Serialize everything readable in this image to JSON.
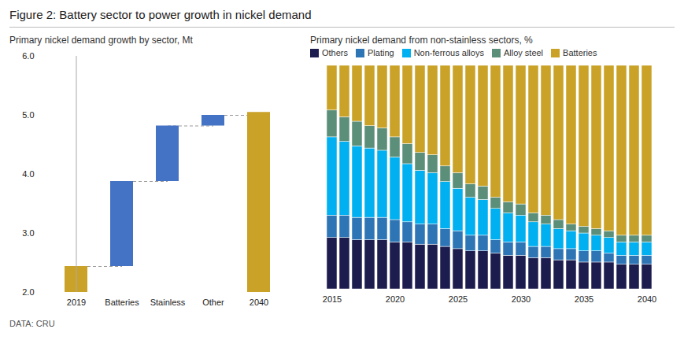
{
  "title": "Figure 2: Battery sector to power growth in nickel demand",
  "caption": "DATA: CRU",
  "chart_data": [
    {
      "type": "waterfall",
      "title": "Primary nickel demand growth by sector, Mt",
      "categories": [
        "2019",
        "Batteries",
        "Stainless",
        "Other",
        "2040"
      ],
      "bottoms": [
        2.0,
        2.44,
        3.88,
        4.82,
        2.0
      ],
      "tops": [
        2.44,
        3.88,
        4.82,
        5.0,
        5.05
      ],
      "colors": [
        "#C9A227",
        "#4472C4",
        "#4472C4",
        "#4472C4",
        "#C9A227"
      ],
      "ylim": [
        2.0,
        6.0
      ],
      "yticks": [
        {
          "value": 2.0,
          "label": "2.0"
        },
        {
          "value": 3.0,
          "label": "3.0"
        },
        {
          "value": 4.0,
          "label": "4.0"
        },
        {
          "value": 5.0,
          "label": "5.0"
        },
        {
          "value": 6.0,
          "label": "6.0"
        }
      ],
      "grid": false
    },
    {
      "type": "bar",
      "stacked": true,
      "title": "Primary nickel demand from non-stainless sectors, %",
      "categories": [
        "2015",
        null,
        null,
        null,
        null,
        "2020",
        null,
        null,
        null,
        null,
        "2025",
        null,
        null,
        null,
        null,
        "2030",
        null,
        null,
        null,
        null,
        "2035",
        null,
        null,
        null,
        null,
        "2040"
      ],
      "series": [
        {
          "name": "Others",
          "color": "#1C1C4E",
          "values": [
            23,
            23,
            22,
            22,
            22,
            21,
            21,
            20,
            20,
            19,
            18,
            17,
            17,
            16,
            15,
            15,
            14,
            14,
            13,
            13,
            12,
            12,
            12,
            11,
            11,
            11
          ]
        },
        {
          "name": "Plating",
          "color": "#2E75B6",
          "values": [
            10,
            10,
            10,
            10,
            10,
            10,
            9,
            9,
            9,
            8,
            8,
            7,
            7,
            6,
            6,
            6,
            5,
            5,
            5,
            5,
            5,
            5,
            4,
            4,
            4,
            4
          ]
        },
        {
          "name": "Non-ferrous alloys",
          "color": "#00B0F0",
          "values": [
            35,
            33,
            32,
            31,
            30,
            28,
            26,
            24,
            23,
            21,
            19,
            17,
            16,
            14,
            13,
            12,
            11,
            10,
            9,
            8,
            8,
            7,
            7,
            6,
            6,
            6
          ]
        },
        {
          "name": "Alloy steel",
          "color": "#5B8F7A",
          "values": [
            12,
            11,
            11,
            10,
            10,
            9,
            9,
            8,
            8,
            7,
            7,
            6,
            6,
            5,
            5,
            5,
            4,
            4,
            4,
            3,
            3,
            3,
            3,
            3,
            3,
            3
          ]
        },
        {
          "name": "Batteries",
          "color": "#C9A227",
          "values": [
            20,
            23,
            25,
            27,
            28,
            32,
            35,
            39,
            40,
            45,
            48,
            53,
            54,
            59,
            61,
            62,
            66,
            67,
            69,
            71,
            72,
            73,
            74,
            76,
            76,
            76
          ]
        }
      ],
      "ylim": [
        0,
        100
      ],
      "tick_labels": "x",
      "legend": "top left",
      "grid": false
    }
  ]
}
